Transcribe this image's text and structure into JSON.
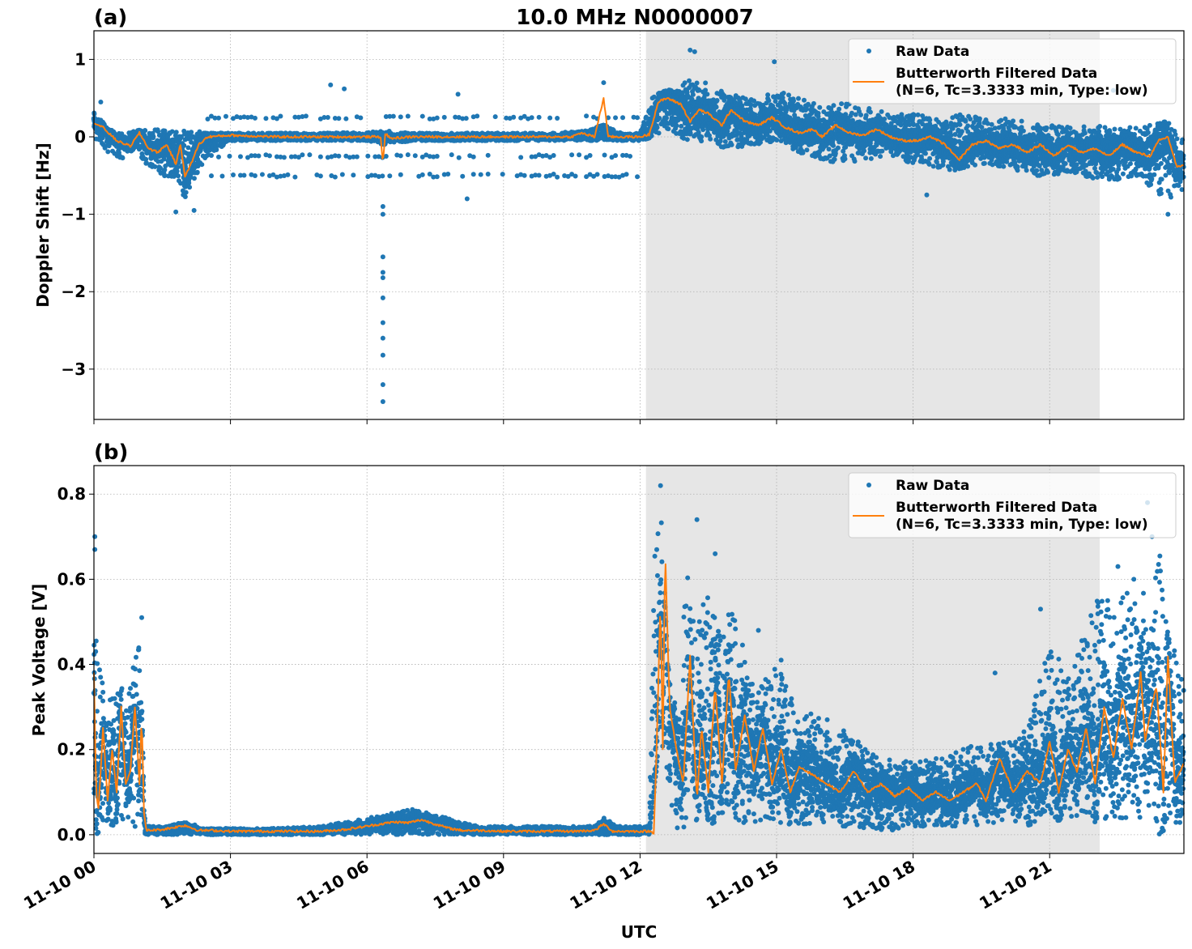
{
  "figure": {
    "suptitle": "10.0 MHz N0000007",
    "xlabel": "UTC",
    "x_tick_labels": [
      "11-10 00",
      "11-10 03",
      "11-10 06",
      "11-10 09",
      "11-10 12",
      "11-10 15",
      "11-10 18",
      "11-10 21"
    ]
  },
  "colors": {
    "raw": "#1f77b4",
    "filtered": "#ff7f0e",
    "shade": "#e6e6e6",
    "grid": "#b0b0b0"
  },
  "legend": {
    "raw_label": "Raw Data",
    "filtered_label_line1": "Butterworth Filtered Data",
    "filtered_label_line2": "(N=6, Tc=3.3333 min, Type: low)"
  },
  "chart_data": [
    {
      "type": "scatter",
      "panel_label": "(a)",
      "title": "10.0 MHz N0000007",
      "xlabel": "",
      "ylabel": "Doppler Shift [Hz]",
      "x_unit": "hours UTC on 11-10",
      "xlim": [
        0,
        23.95
      ],
      "ylim": [
        -3.65,
        1.37
      ],
      "yticks": [
        1,
        0,
        -1,
        -2,
        -3
      ],
      "ytick_labels": [
        "1",
        "0",
        "−1",
        "−2",
        "−3"
      ],
      "xticks": [
        0,
        3,
        6,
        9,
        12,
        15,
        18,
        21
      ],
      "grid": true,
      "legend_position": "upper-right",
      "shaded_span": [
        12.13,
        22.1
      ],
      "series": [
        {
          "name": "Raw Data",
          "kind": "scatter",
          "envelope": {
            "x": [
              0.0,
              0.3,
              0.6,
              0.9,
              1.2,
              1.5,
              1.8,
              2.0,
              2.2,
              2.5,
              3.0,
              4.0,
              5.0,
              6.0,
              6.4,
              7.0,
              8.0,
              9.0,
              10.0,
              10.8,
              11.2,
              11.6,
              12.0,
              12.3,
              12.6,
              13.0,
              13.5,
              14.0,
              14.5,
              15.0,
              15.5,
              16.0,
              16.5,
              17.0,
              17.5,
              18.0,
              18.5,
              19.0,
              19.5,
              20.0,
              20.5,
              21.0,
              21.5,
              22.0,
              22.5,
              23.0,
              23.5,
              23.95
            ],
            "upper": [
              0.35,
              0.1,
              0.05,
              0.08,
              0.1,
              0.1,
              0.1,
              0.1,
              0.08,
              0.05,
              0.05,
              0.05,
              0.05,
              0.06,
              0.08,
              0.05,
              0.05,
              0.05,
              0.05,
              0.08,
              0.15,
              0.05,
              0.05,
              0.55,
              0.6,
              0.75,
              0.7,
              0.55,
              0.5,
              0.6,
              0.5,
              0.4,
              0.45,
              0.4,
              0.3,
              0.3,
              0.25,
              0.3,
              0.25,
              0.25,
              0.2,
              0.15,
              0.15,
              0.15,
              0.1,
              0.15,
              0.2,
              0.1
            ],
            "lower": [
              0.0,
              -0.2,
              -0.3,
              -0.15,
              -0.4,
              -0.5,
              -0.55,
              -0.8,
              -0.6,
              -0.25,
              -0.05,
              -0.05,
              -0.05,
              -0.05,
              -0.1,
              -0.05,
              -0.05,
              -0.05,
              -0.05,
              -0.05,
              -0.05,
              -0.05,
              -0.05,
              0.0,
              0.1,
              -0.05,
              -0.1,
              -0.15,
              -0.1,
              -0.05,
              -0.2,
              -0.3,
              -0.35,
              -0.3,
              -0.25,
              -0.35,
              -0.4,
              -0.45,
              -0.35,
              -0.4,
              -0.5,
              -0.5,
              -0.45,
              -0.55,
              -0.55,
              -0.5,
              -0.85,
              -0.7
            ]
          },
          "outliers": [
            {
              "x": 6.35,
              "y": -1.55
            },
            {
              "x": 6.35,
              "y": -1.75
            },
            {
              "x": 6.35,
              "y": -1.82
            },
            {
              "x": 6.35,
              "y": -2.08
            },
            {
              "x": 6.35,
              "y": -2.4
            },
            {
              "x": 6.35,
              "y": -2.6
            },
            {
              "x": 6.35,
              "y": -2.82
            },
            {
              "x": 6.35,
              "y": -3.2
            },
            {
              "x": 6.35,
              "y": -3.42
            },
            {
              "x": 6.35,
              "y": -0.9
            },
            {
              "x": 6.35,
              "y": -1.0
            },
            {
              "x": 13.1,
              "y": 1.12
            },
            {
              "x": 13.2,
              "y": 1.1
            },
            {
              "x": 14.95,
              "y": 0.97
            },
            {
              "x": 5.2,
              "y": 0.67
            },
            {
              "x": 5.5,
              "y": 0.62
            },
            {
              "x": 11.2,
              "y": 0.7
            },
            {
              "x": 0.15,
              "y": 0.45
            },
            {
              "x": 1.8,
              "y": -0.97
            },
            {
              "x": 2.2,
              "y": -0.95
            },
            {
              "x": 8.0,
              "y": 0.55
            },
            {
              "x": 8.2,
              "y": -0.8
            },
            {
              "x": 18.3,
              "y": -0.75
            },
            {
              "x": 22.4,
              "y": 0.6
            },
            {
              "x": 23.6,
              "y": -1.0
            }
          ],
          "bands": [
            {
              "x_from": 2.5,
              "x_to": 12.0,
              "y": 0.25
            },
            {
              "x_from": 2.5,
              "x_to": 12.0,
              "y": -0.25
            },
            {
              "x_from": 2.5,
              "x_to": 12.0,
              "y": -0.5
            }
          ]
        },
        {
          "name": "Butterworth Filtered Data (N=6, Tc=3.3333 min, Type: low)",
          "kind": "line",
          "x": [
            0.0,
            0.2,
            0.5,
            0.8,
            1.0,
            1.2,
            1.4,
            1.6,
            1.8,
            1.9,
            2.0,
            2.1,
            2.3,
            2.5,
            3.0,
            4.0,
            5.0,
            6.0,
            6.3,
            6.35,
            6.4,
            6.5,
            7.0,
            8.0,
            9.0,
            10.0,
            10.5,
            10.7,
            11.0,
            11.2,
            11.3,
            11.5,
            12.0,
            12.2,
            12.4,
            12.6,
            12.9,
            13.1,
            13.3,
            13.5,
            13.8,
            14.0,
            14.3,
            14.6,
            14.9,
            15.2,
            15.5,
            15.8,
            16.0,
            16.3,
            16.6,
            16.9,
            17.2,
            17.5,
            17.8,
            18.1,
            18.4,
            18.7,
            19.0,
            19.3,
            19.6,
            19.9,
            20.2,
            20.5,
            20.8,
            21.1,
            21.4,
            21.7,
            22.0,
            22.3,
            22.6,
            22.9,
            23.2,
            23.4,
            23.6,
            23.8,
            23.95
          ],
          "y": [
            0.18,
            0.12,
            -0.05,
            -0.12,
            0.05,
            -0.15,
            -0.2,
            -0.1,
            -0.35,
            -0.1,
            -0.5,
            -0.4,
            -0.1,
            0.0,
            0.02,
            0.0,
            0.0,
            0.0,
            0.0,
            -0.35,
            0.05,
            -0.02,
            0.0,
            0.0,
            0.0,
            0.0,
            0.0,
            0.05,
            0.0,
            0.5,
            0.0,
            0.0,
            0.0,
            0.03,
            0.45,
            0.5,
            0.42,
            0.2,
            0.35,
            0.3,
            0.15,
            0.35,
            0.2,
            0.15,
            0.25,
            0.12,
            0.05,
            0.1,
            0.0,
            0.15,
            0.05,
            0.02,
            0.1,
            0.0,
            -0.05,
            -0.05,
            0.0,
            -0.1,
            -0.3,
            -0.1,
            -0.05,
            -0.15,
            -0.1,
            -0.2,
            -0.1,
            -0.25,
            -0.1,
            -0.2,
            -0.15,
            -0.25,
            -0.1,
            -0.2,
            -0.25,
            -0.05,
            0.0,
            -0.4,
            -0.35
          ]
        }
      ]
    },
    {
      "type": "scatter",
      "panel_label": "(b)",
      "title": "",
      "xlabel": "UTC",
      "ylabel": "Peak Voltage [V]",
      "x_unit": "hours UTC on 11-10",
      "xlim": [
        0,
        23.95
      ],
      "ylim": [
        -0.044,
        0.867
      ],
      "yticks": [
        0.8,
        0.6,
        0.4,
        0.2,
        0.0
      ],
      "ytick_labels": [
        "0.8",
        "0.6",
        "0.4",
        "0.2",
        "0.0"
      ],
      "xticks": [
        0,
        3,
        6,
        9,
        12,
        15,
        18,
        21
      ],
      "grid": true,
      "legend_position": "upper-right",
      "shaded_span": [
        12.13,
        22.1
      ],
      "series": [
        {
          "name": "Raw Data",
          "kind": "scatter",
          "envelope": {
            "x": [
              0.0,
              0.05,
              0.3,
              0.5,
              0.7,
              0.9,
              1.0,
              1.08,
              1.12,
              1.5,
              2.0,
              2.5,
              3.0,
              4.0,
              5.0,
              5.5,
              6.0,
              6.5,
              7.0,
              7.5,
              8.0,
              8.5,
              9.0,
              10.0,
              11.0,
              11.2,
              11.5,
              12.0,
              12.2,
              12.35,
              12.45,
              12.6,
              12.8,
              13.0,
              13.2,
              13.4,
              13.6,
              13.8,
              14.0,
              14.3,
              14.6,
              15.0,
              15.5,
              16.0,
              16.5,
              17.0,
              17.5,
              18.0,
              18.5,
              19.0,
              19.5,
              20.0,
              20.5,
              21.0,
              21.5,
              22.0,
              22.5,
              23.0,
              23.4,
              23.6,
              23.95
            ],
            "upper": [
              0.7,
              0.45,
              0.3,
              0.4,
              0.3,
              0.42,
              0.5,
              0.2,
              0.02,
              0.02,
              0.03,
              0.015,
              0.015,
              0.015,
              0.02,
              0.03,
              0.04,
              0.05,
              0.06,
              0.05,
              0.03,
              0.02,
              0.02,
              0.02,
              0.02,
              0.04,
              0.02,
              0.02,
              0.02,
              0.8,
              0.82,
              0.4,
              0.3,
              0.65,
              0.5,
              0.58,
              0.55,
              0.45,
              0.55,
              0.45,
              0.35,
              0.4,
              0.3,
              0.28,
              0.25,
              0.2,
              0.18,
              0.17,
              0.18,
              0.2,
              0.22,
              0.22,
              0.25,
              0.45,
              0.4,
              0.55,
              0.6,
              0.55,
              0.7,
              0.5,
              0.35
            ],
            "lower": [
              0.05,
              0.0,
              0.03,
              0.0,
              0.05,
              0.0,
              0.05,
              0.005,
              0.0,
              0.0,
              0.0,
              0.0,
              0.0,
              0.0,
              0.0,
              0.0,
              0.0,
              0.0,
              0.0,
              0.0,
              0.0,
              0.0,
              0.0,
              0.0,
              0.0,
              0.0,
              0.0,
              0.0,
              0.0,
              0.15,
              0.25,
              0.1,
              0.01,
              0.02,
              0.03,
              0.05,
              0.02,
              0.05,
              0.03,
              0.02,
              0.03,
              0.02,
              0.02,
              0.02,
              0.02,
              0.015,
              0.01,
              0.02,
              0.02,
              0.02,
              0.02,
              0.03,
              0.02,
              0.03,
              0.04,
              0.03,
              0.03,
              0.02,
              0.0,
              0.02,
              0.03
            ]
          },
          "outliers": [
            {
              "x": 0.02,
              "y": 0.7
            },
            {
              "x": 0.02,
              "y": 0.67
            },
            {
              "x": 1.05,
              "y": 0.51
            },
            {
              "x": 12.45,
              "y": 0.82
            },
            {
              "x": 13.25,
              "y": 0.74
            },
            {
              "x": 13.65,
              "y": 0.66
            },
            {
              "x": 14.6,
              "y": 0.48
            },
            {
              "x": 15.1,
              "y": 0.41
            },
            {
              "x": 19.8,
              "y": 0.38
            },
            {
              "x": 20.8,
              "y": 0.53
            },
            {
              "x": 22.5,
              "y": 0.63
            },
            {
              "x": 22.85,
              "y": 0.6
            },
            {
              "x": 23.15,
              "y": 0.78
            },
            {
              "x": 23.25,
              "y": 0.7
            }
          ]
        },
        {
          "name": "Butterworth Filtered Data (N=6, Tc=3.3333 min, Type: low)",
          "kind": "line",
          "x": [
            0.0,
            0.05,
            0.1,
            0.2,
            0.3,
            0.4,
            0.5,
            0.6,
            0.7,
            0.8,
            0.9,
            1.0,
            1.05,
            1.1,
            1.15,
            1.5,
            2.0,
            2.3,
            2.6,
            3.0,
            4.0,
            5.0,
            5.5,
            6.0,
            6.3,
            6.6,
            6.9,
            7.2,
            7.5,
            7.8,
            8.1,
            8.5,
            9.0,
            10.0,
            10.5,
            11.0,
            11.2,
            11.4,
            12.0,
            12.2,
            12.3,
            12.35,
            12.45,
            12.5,
            12.55,
            12.65,
            12.8,
            12.95,
            13.1,
            13.25,
            13.35,
            13.5,
            13.65,
            13.8,
            13.95,
            14.1,
            14.3,
            14.5,
            14.7,
            14.9,
            15.1,
            15.3,
            15.5,
            15.8,
            16.1,
            16.4,
            16.7,
            17.0,
            17.3,
            17.6,
            17.9,
            18.2,
            18.5,
            18.8,
            19.1,
            19.4,
            19.6,
            19.9,
            20.2,
            20.5,
            20.8,
            21.0,
            21.2,
            21.4,
            21.6,
            21.8,
            22.0,
            22.2,
            22.4,
            22.6,
            22.8,
            23.0,
            23.1,
            23.2,
            23.35,
            23.5,
            23.6,
            23.75,
            23.95
          ],
          "y": [
            0.38,
            0.1,
            0.06,
            0.25,
            0.08,
            0.2,
            0.1,
            0.3,
            0.12,
            0.15,
            0.3,
            0.12,
            0.28,
            0.05,
            0.01,
            0.012,
            0.022,
            0.01,
            0.01,
            0.008,
            0.008,
            0.008,
            0.012,
            0.02,
            0.025,
            0.03,
            0.028,
            0.035,
            0.025,
            0.015,
            0.01,
            0.01,
            0.008,
            0.008,
            0.008,
            0.01,
            0.025,
            0.008,
            0.008,
            0.008,
            0.005,
            0.15,
            0.55,
            0.2,
            0.67,
            0.3,
            0.2,
            0.12,
            0.42,
            0.08,
            0.25,
            0.1,
            0.35,
            0.12,
            0.38,
            0.15,
            0.28,
            0.15,
            0.25,
            0.12,
            0.2,
            0.1,
            0.16,
            0.14,
            0.12,
            0.1,
            0.15,
            0.1,
            0.12,
            0.09,
            0.11,
            0.08,
            0.1,
            0.08,
            0.1,
            0.12,
            0.08,
            0.18,
            0.1,
            0.15,
            0.12,
            0.22,
            0.1,
            0.2,
            0.15,
            0.25,
            0.12,
            0.3,
            0.18,
            0.32,
            0.2,
            0.38,
            0.22,
            0.28,
            0.35,
            0.1,
            0.42,
            0.12,
            0.17
          ]
        }
      ]
    }
  ]
}
